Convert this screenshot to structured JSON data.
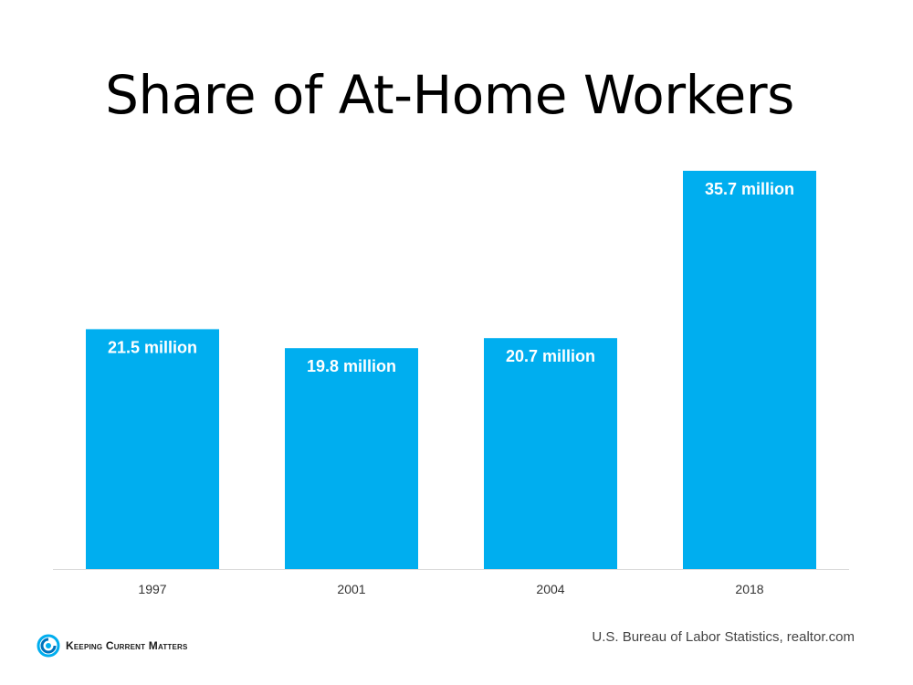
{
  "title": "Share of At-Home Workers",
  "source": "U.S. Bureau of Labor Statistics, realtor.com",
  "logo": {
    "text": "Keeping Current Matters",
    "icon": "swirl-logo-icon"
  },
  "colors": {
    "bar": "#00aeef",
    "label": "#ffffff",
    "axis_line": "#d9d9d9",
    "tick_label": "#333333"
  },
  "chart_data": {
    "type": "bar",
    "categories": [
      "1997",
      "2001",
      "2004",
      "2018"
    ],
    "values": [
      21.5,
      19.8,
      20.7,
      35.7
    ],
    "data_labels": [
      "21.5 million",
      "19.8 million",
      "20.7 million",
      "35.7 million"
    ],
    "title": "Share of At-Home Workers",
    "xlabel": "",
    "ylabel": "",
    "ylim": [
      0,
      35.7
    ],
    "grid": false,
    "legend": "none"
  }
}
